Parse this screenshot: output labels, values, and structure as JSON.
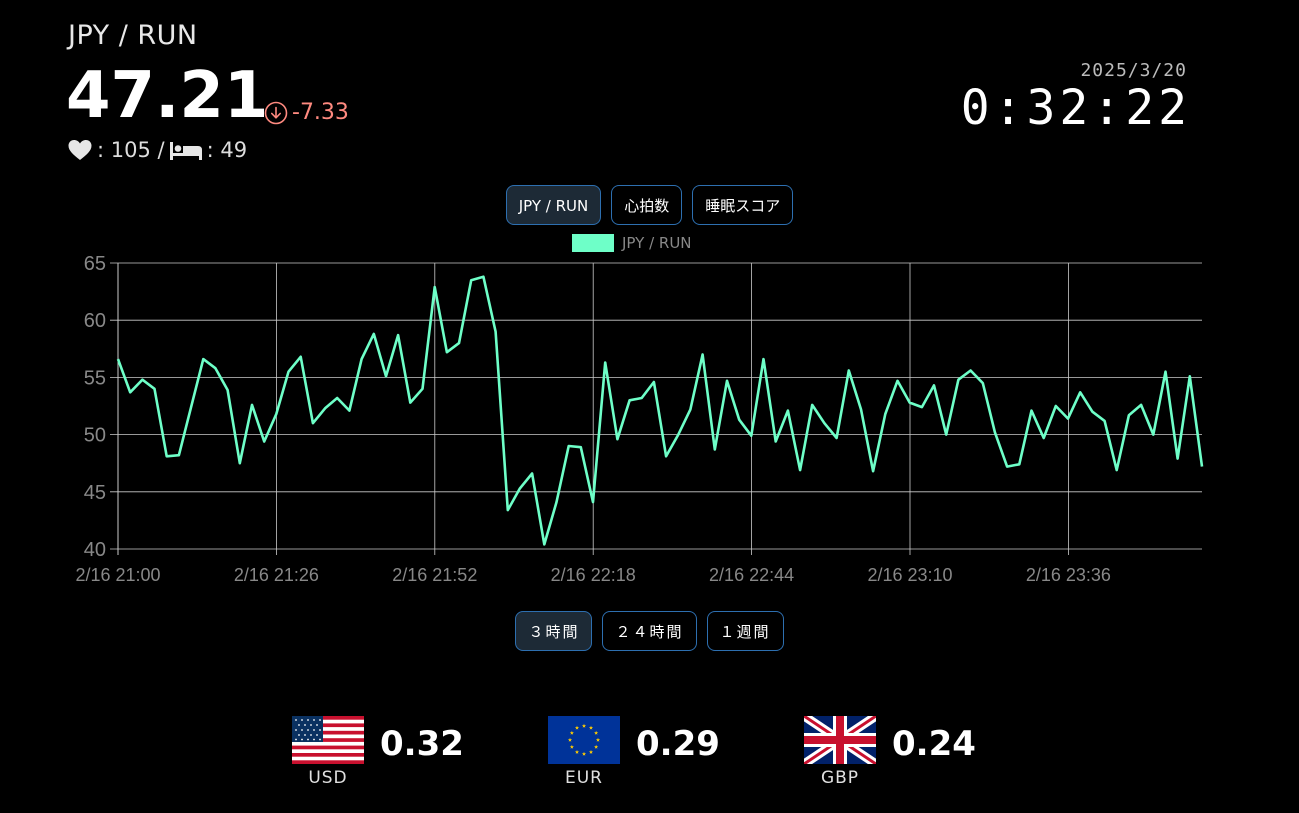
{
  "header": {
    "pair": "JPY / RUN",
    "rate": "47.21",
    "change": "-7.33",
    "heart_value": ": 105 /",
    "sleep_value": ": 49"
  },
  "datetime": {
    "date": "2025/3/20",
    "time": "0:32:22"
  },
  "metric_tabs": [
    {
      "label": "JPY / RUN",
      "active": true
    },
    {
      "label": "心拍数",
      "active": false
    },
    {
      "label": "睡眠スコア",
      "active": false
    }
  ],
  "range_tabs": [
    {
      "label": "３時間",
      "active": true
    },
    {
      "label": "２４時間",
      "active": false
    },
    {
      "label": "１週間",
      "active": false
    }
  ],
  "colors": {
    "line": "#6effc8",
    "down": "#ff8a80",
    "grid": "#cccccc",
    "tick": "#888888",
    "button_border": "#2d6fb0"
  },
  "chart_data": {
    "type": "line",
    "title": "",
    "xlabel": "",
    "ylabel": "",
    "ylim": [
      40,
      65
    ],
    "yticks": [
      40,
      45,
      50,
      55,
      60,
      65
    ],
    "x_tick_labels": [
      "2/16 21:00",
      "2/16 21:26",
      "2/16 21:52",
      "2/16 22:18",
      "2/16 22:44",
      "2/16 23:10",
      "2/16 23:36"
    ],
    "grid": true,
    "legend": "top-center",
    "series": [
      {
        "name": "JPY / RUN",
        "values": [
          56.6,
          53.7,
          54.8,
          54.0,
          48.1,
          48.2,
          52.4,
          56.6,
          55.8,
          53.9,
          47.5,
          52.6,
          49.4,
          51.8,
          55.5,
          56.8,
          51.0,
          52.3,
          53.2,
          52.1,
          56.6,
          58.8,
          55.1,
          58.7,
          52.8,
          54.0,
          62.9,
          57.2,
          58.0,
          63.5,
          63.8,
          59.0,
          43.4,
          45.3,
          46.6,
          40.4,
          44.1,
          49.0,
          48.9,
          44.1,
          56.3,
          49.6,
          53.0,
          53.2,
          54.6,
          48.1,
          50.0,
          52.2,
          57.0,
          48.7,
          54.7,
          51.3,
          49.9,
          56.6,
          49.4,
          52.1,
          46.9,
          52.6,
          51.0,
          49.7,
          55.6,
          52.2,
          46.8,
          51.8,
          54.7,
          52.8,
          52.4,
          54.3,
          50.0,
          54.8,
          55.6,
          54.5,
          50.2,
          47.2,
          47.4,
          52.1,
          49.7,
          52.5,
          51.4,
          53.7,
          52.0,
          51.2,
          46.9,
          51.7,
          52.6,
          50.0,
          55.5,
          47.9,
          55.1,
          47.2
        ]
      }
    ]
  },
  "currencies": [
    {
      "code": "USD",
      "value": "0.32",
      "flag": "us-flag"
    },
    {
      "code": "EUR",
      "value": "0.29",
      "flag": "eu-flag"
    },
    {
      "code": "GBP",
      "value": "0.24",
      "flag": "uk-flag"
    }
  ]
}
